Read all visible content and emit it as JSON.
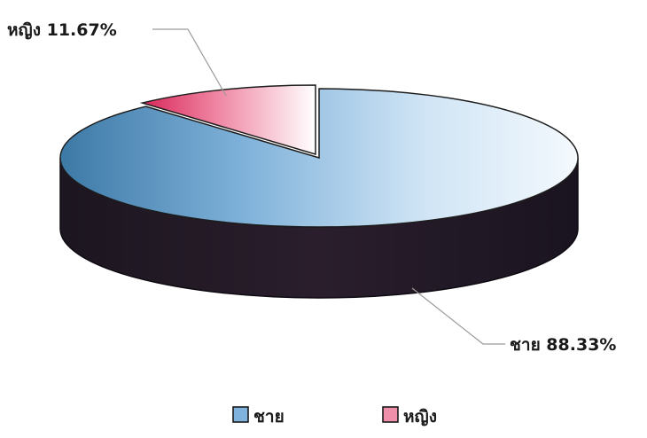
{
  "chart_data": {
    "type": "pie",
    "title": "",
    "three_d": true,
    "series": [
      {
        "values": [
          88.33,
          11.67
        ]
      }
    ],
    "categories": [
      "ชาย",
      "หญิง"
    ],
    "slices": [
      {
        "label": "ชาย",
        "value": 88.33,
        "data_label": "ชาย 88.33%",
        "color": "#9cc3e2"
      },
      {
        "label": "หญิง",
        "value": 11.67,
        "data_label": "หญิง 11.67%",
        "color": "#e0486c"
      }
    ],
    "legend": {
      "position": "bottom",
      "items": [
        {
          "label": "ชาย",
          "color": "#9cc3e2"
        },
        {
          "label": "หญิง",
          "color": "#e0486c"
        }
      ]
    }
  }
}
